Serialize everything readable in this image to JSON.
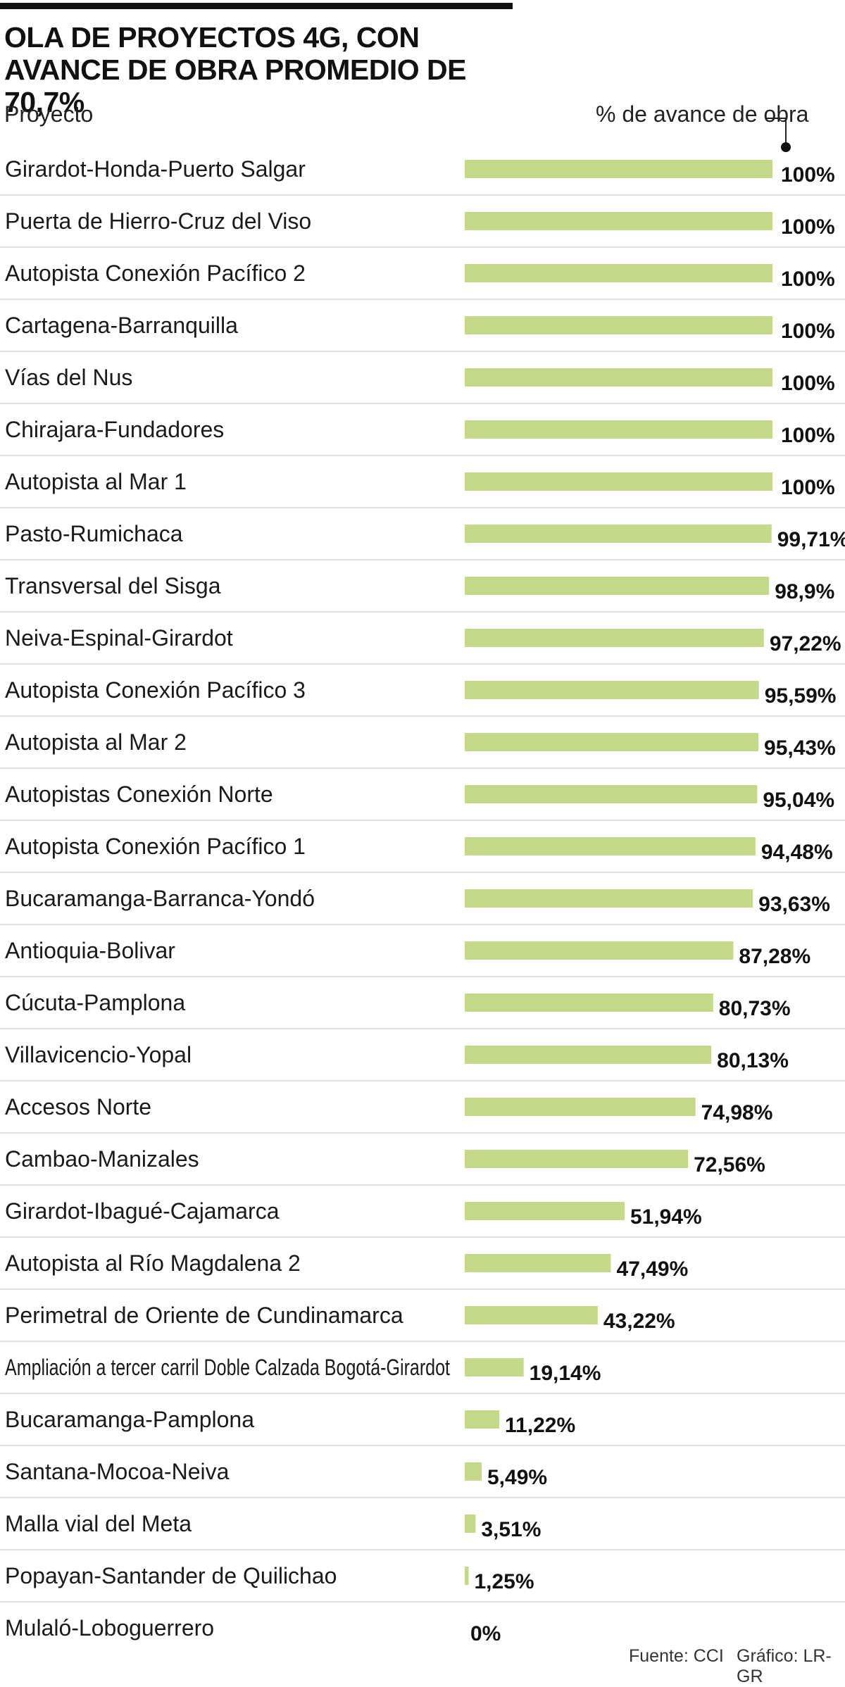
{
  "chart_data": {
    "type": "bar",
    "orientation": "horizontal",
    "title": "OLA DE PROYECTOS 4G, CON AVANCE DE OBRA PROMEDIO DE 70,7%",
    "column_header_label": "Proyecto",
    "value_header_label": "% de avance de obra",
    "xlim": [
      0,
      100
    ],
    "bar_color": "#c5d98a",
    "categories": [
      "Girardot-Honda-Puerto Salgar",
      "Puerta de Hierro-Cruz del Viso",
      "Autopista Conexión Pacífico 2",
      "Cartagena-Barranquilla",
      "Vías del Nus",
      "Chirajara-Fundadores",
      "Autopista al Mar 1",
      "Pasto-Rumichaca",
      "Transversal del Sisga",
      "Neiva-Espinal-Girardot",
      "Autopista Conexión Pacífico 3",
      "Autopista al Mar 2",
      "Autopistas Conexión Norte",
      "Autopista Conexión Pacífico 1",
      "Bucaramanga-Barranca-Yondó",
      "Antioquia-Bolivar",
      "Cúcuta-Pamplona",
      "Villavicencio-Yopal",
      "Accesos Norte",
      "Cambao-Manizales",
      "Girardot-Ibagué-Cajamarca",
      "Autopista al Río Magdalena 2",
      "Perimetral de Oriente de Cundinamarca",
      "Ampliación a tercer carril Doble Calzada Bogotá-Girardot",
      "Bucaramanga-Pamplona",
      "Santana-Mocoa-Neiva",
      "Malla vial del Meta",
      "Popayan-Santander de Quilichao",
      "Mulaló-Loboguerrero"
    ],
    "values": [
      100,
      100,
      100,
      100,
      100,
      100,
      100,
      99.71,
      98.9,
      97.22,
      95.59,
      95.43,
      95.04,
      94.48,
      93.63,
      87.28,
      80.73,
      80.13,
      74.98,
      72.56,
      51.94,
      47.49,
      43.22,
      19.14,
      11.22,
      5.49,
      3.51,
      1.25,
      0
    ],
    "value_labels": [
      "100%",
      "100%",
      "100%",
      "100%",
      "100%",
      "100%",
      "100%",
      "99,71%",
      "98,9%",
      "97,22%",
      "95,59%",
      "95,43%",
      "95,04%",
      "94,48%",
      "93,63%",
      "87,28%",
      "80,73%",
      "80,13%",
      "74,98%",
      "72,56%",
      "51,94%",
      "47,49%",
      "43,22%",
      "19,14%",
      "11,22%",
      "5,49%",
      "3,51%",
      "1,25%",
      "0%"
    ]
  },
  "footer": {
    "source": "Fuente: CCI",
    "credit": "Gráfico: LR-GR"
  }
}
